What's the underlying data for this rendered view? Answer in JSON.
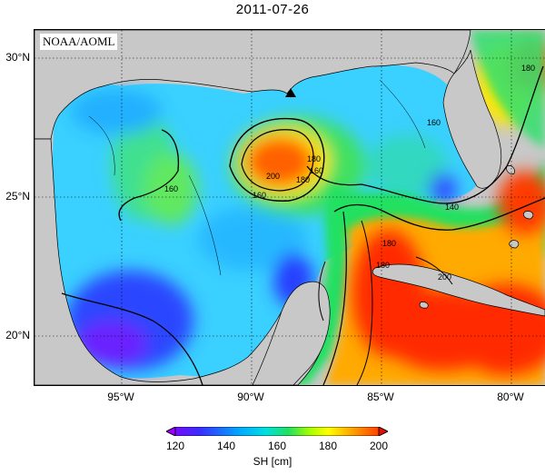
{
  "title": "2011-07-26",
  "credit": "NOAA/AOML",
  "lat_labels": [
    "30°N",
    "25°N",
    "20°N"
  ],
  "lon_labels": [
    "95°W",
    "90°W",
    "85°W",
    "80°W"
  ],
  "contour_labels": [
    "180",
    "200",
    "180",
    "160",
    "160",
    "160",
    "180",
    "180",
    "200",
    "140",
    "180",
    "160"
  ],
  "colorbar": {
    "ticks": [
      "120",
      "140",
      "160",
      "180",
      "200"
    ],
    "label": "SH [cm]",
    "min": 120,
    "max": 200,
    "colors": [
      "#8a00ff",
      "#3a2cff",
      "#00a8ff",
      "#00e0e0",
      "#20e060",
      "#a8ff00",
      "#ffff00",
      "#ff9a00",
      "#ff2000"
    ]
  },
  "map": {
    "region": "Gulf of Mexico",
    "variable": "sea surface height",
    "lat_range": [
      18,
      31
    ],
    "lon_range": [
      -98,
      -78
    ],
    "land_color": "#c8c8c8",
    "grid": true
  }
}
